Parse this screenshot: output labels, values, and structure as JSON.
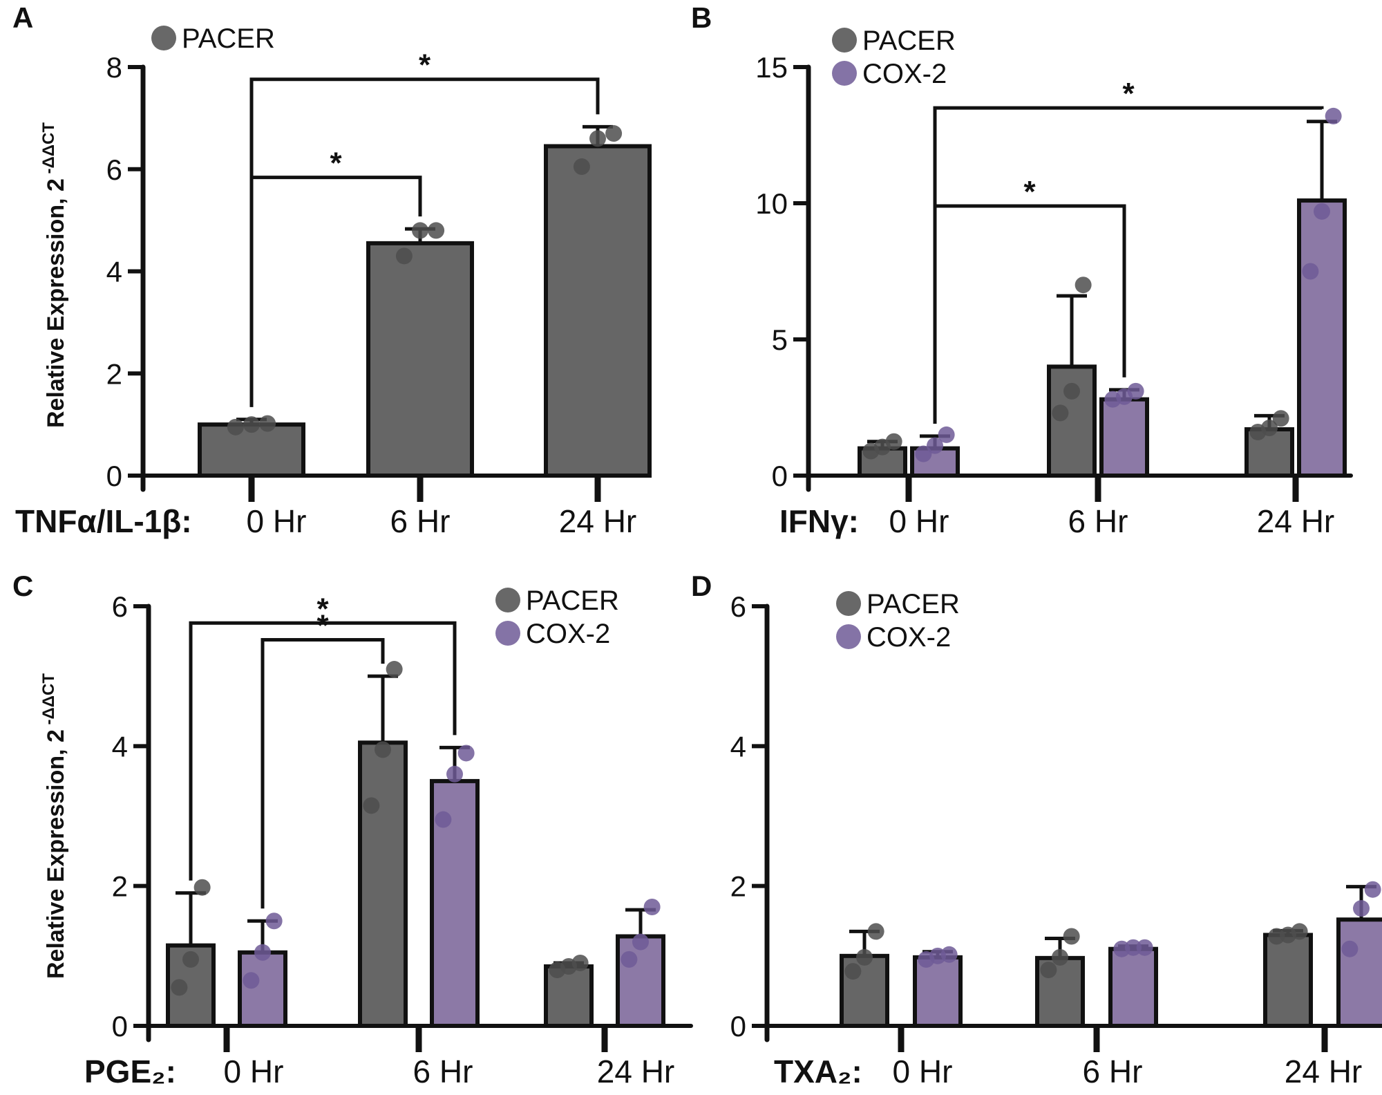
{
  "colors": {
    "pacer": "#666666",
    "cox2": "#8c79a6",
    "pacer_dot": "#4d4d4d",
    "cox2_dot": "#6f5b96",
    "axis": "#111111"
  },
  "chart_data": [
    {
      "panel": "A",
      "type": "bar",
      "treatment_label": "TNFα/IL-1β:",
      "categories": [
        "0 Hr",
        "6 Hr",
        "24 Hr"
      ],
      "ylabel": "Relative Expression, 2",
      "ylabel_sup": "-ΔΔCT",
      "ylim": [
        0,
        8
      ],
      "yticks": [
        0,
        2,
        4,
        6,
        8
      ],
      "legend_placement": "top-left",
      "series": [
        {
          "name": "PACER",
          "values": [
            1.0,
            4.55,
            6.45
          ],
          "errors": [
            0.1,
            0.28,
            0.38
          ],
          "points": [
            [
              0.95,
              1.0,
              1.02
            ],
            [
              4.3,
              4.8,
              4.8
            ],
            [
              6.05,
              6.6,
              6.7
            ]
          ]
        }
      ],
      "significance": [
        {
          "from": [
            0,
            0
          ],
          "to": [
            1,
            0
          ],
          "label": "*"
        },
        {
          "from": [
            0,
            0
          ],
          "to": [
            2,
            0
          ],
          "label": "*"
        }
      ]
    },
    {
      "panel": "B",
      "type": "bar",
      "treatment_label": "IFNγ:",
      "categories": [
        "0 Hr",
        "6 Hr",
        "24 Hr"
      ],
      "ylabel": "",
      "ylabel_sup": "",
      "ylim": [
        0,
        15
      ],
      "yticks": [
        0,
        5,
        10,
        15
      ],
      "legend_placement": "top-left",
      "series": [
        {
          "name": "PACER",
          "values": [
            1.0,
            4.0,
            1.7
          ],
          "errors": [
            0.25,
            2.6,
            0.5
          ],
          "points": [
            [
              0.9,
              1.05,
              1.25
            ],
            [
              2.3,
              3.1,
              7.0
            ],
            [
              1.6,
              1.75,
              2.1
            ]
          ]
        },
        {
          "name": "COX-2",
          "values": [
            1.0,
            2.8,
            10.1
          ],
          "errors": [
            0.45,
            0.35,
            2.9
          ],
          "points": [
            [
              0.8,
              1.1,
              1.5
            ],
            [
              2.8,
              2.9,
              3.1
            ],
            [
              7.5,
              9.7,
              13.2
            ]
          ]
        }
      ],
      "significance": [
        {
          "from": [
            0,
            1
          ],
          "to": [
            1,
            1
          ],
          "label": "*"
        },
        {
          "from": [
            0,
            1
          ],
          "to": [
            2,
            1
          ],
          "label": "*"
        }
      ]
    },
    {
      "panel": "C",
      "type": "bar",
      "treatment_label": "PGE₂:",
      "categories": [
        "0 Hr",
        "6 Hr",
        "24 Hr"
      ],
      "ylabel": "Relative Expression, 2",
      "ylabel_sup": "-ΔΔCT",
      "ylim": [
        0,
        6
      ],
      "yticks": [
        0,
        2,
        4,
        6
      ],
      "legend_placement": "top-right",
      "series": [
        {
          "name": "PACER",
          "values": [
            1.15,
            4.05,
            0.85
          ],
          "errors": [
            0.75,
            0.95,
            0.05
          ],
          "points": [
            [
              0.55,
              0.95,
              1.98
            ],
            [
              3.15,
              3.95,
              5.1
            ],
            [
              0.8,
              0.85,
              0.9
            ]
          ]
        },
        {
          "name": "COX-2",
          "values": [
            1.05,
            3.5,
            1.28
          ],
          "errors": [
            0.45,
            0.48,
            0.38
          ],
          "points": [
            [
              0.65,
              1.05,
              1.5
            ],
            [
              2.95,
              3.6,
              3.9
            ],
            [
              0.95,
              1.2,
              1.7
            ]
          ]
        }
      ],
      "significance": [
        {
          "from": [
            0,
            1
          ],
          "to": [
            1,
            0
          ],
          "label": "*"
        },
        {
          "from": [
            0,
            0
          ],
          "to": [
            1,
            1
          ],
          "label": "*"
        }
      ]
    },
    {
      "panel": "D",
      "type": "bar",
      "treatment_label": "TXA₂:",
      "categories": [
        "0 Hr",
        "6 Hr",
        "24 Hr"
      ],
      "ylabel": "",
      "ylabel_sup": "",
      "ylim": [
        0,
        6
      ],
      "yticks": [
        0,
        2,
        4,
        6
      ],
      "legend_placement": "top-left",
      "series": [
        {
          "name": "PACER",
          "values": [
            1.0,
            0.97,
            1.3
          ],
          "errors": [
            0.35,
            0.28,
            0.06
          ],
          "points": [
            [
              0.78,
              0.98,
              1.35
            ],
            [
              0.8,
              0.98,
              1.28
            ],
            [
              1.28,
              1.3,
              1.35
            ]
          ]
        },
        {
          "name": "COX-2",
          "values": [
            0.98,
            1.1,
            1.52
          ],
          "errors": [
            0.08,
            0.04,
            0.47
          ],
          "points": [
            [
              0.95,
              1.0,
              1.02
            ],
            [
              1.1,
              1.12,
              1.12
            ],
            [
              1.1,
              1.68,
              1.95
            ]
          ]
        }
      ],
      "significance": []
    }
  ]
}
